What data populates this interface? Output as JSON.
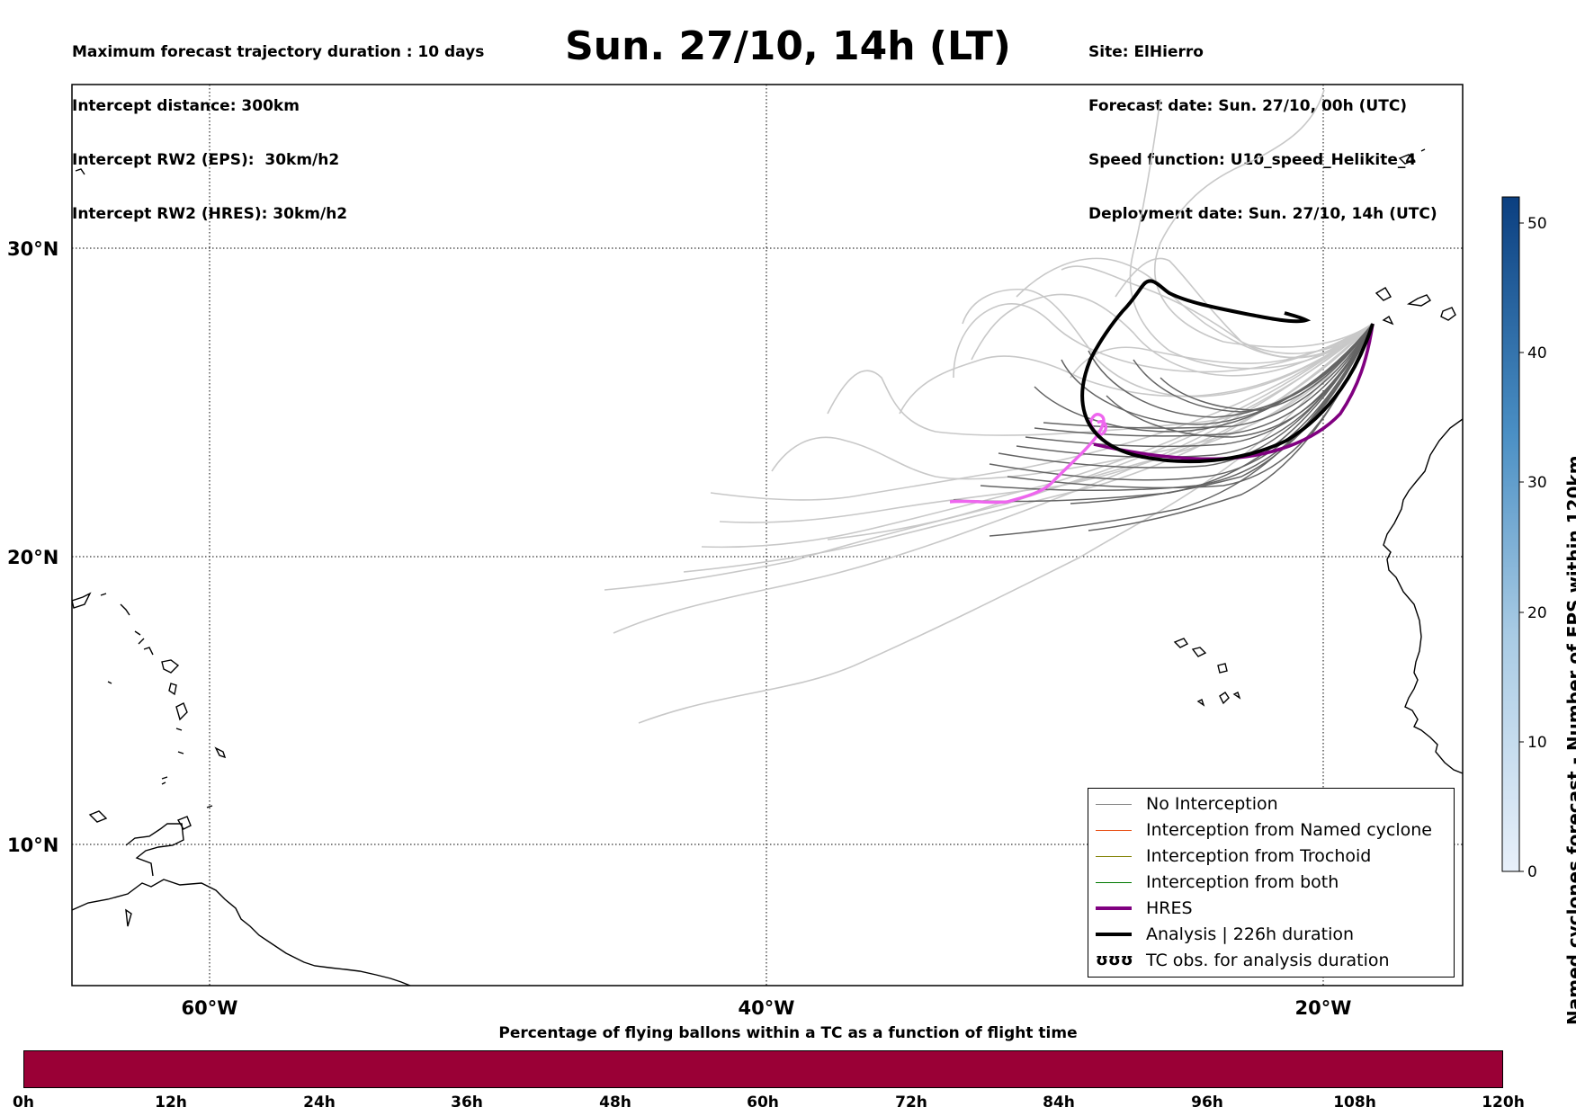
{
  "header": {
    "left_lines": [
      "Maximum forecast trajectory duration : 10 days",
      "Intercept distance: 300km",
      "Intercept RW2 (EPS):  30km/h2",
      "Intercept RW2 (HRES): 30km/h2"
    ],
    "title": "Sun. 27/10, 14h (LT)",
    "right_lines": [
      "Site: ElHierro",
      "Forecast date: Sun. 27/10, 00h (UTC)",
      "Speed function: U10_speed_Helikite_4",
      "Deployment date: Sun. 27/10, 14h (UTC)"
    ]
  },
  "map": {
    "lat_labels": [
      "30°N",
      "20°N",
      "10°N"
    ],
    "lon_labels": [
      "60°W",
      "40°W",
      "20°W"
    ],
    "colors": {
      "eps_light": "#c8c8c8",
      "eps_dark": "#646464",
      "hres": "#800080",
      "hres_early": "#ee66ee",
      "analysis": "#000000"
    }
  },
  "legend": {
    "items": [
      {
        "label": "No Interception",
        "color": "#808080"
      },
      {
        "label": "Interception from Named cyclone",
        "color": "#e8531a"
      },
      {
        "label": "Interception from Trochoid",
        "color": "#808000"
      },
      {
        "label": "Interception from both",
        "color": "#007800"
      },
      {
        "label": "HRES",
        "color": "#800080"
      },
      {
        "label": "Analysis | 226h duration",
        "color": "#000000"
      },
      {
        "label": "TC obs. for analysis duration",
        "icon": "cyclone-symbols-icon",
        "glyph": "ʊʊʊ"
      }
    ]
  },
  "colorbar": {
    "title": "Named cyclones forecast - Number of EPS within 120km",
    "ticks": [
      "0",
      "10",
      "20",
      "30",
      "40",
      "50"
    ],
    "min": 0,
    "max": 52
  },
  "percentage_bar": {
    "title": "Percentage of flying ballons within a TC as a function of flight time",
    "color": "#9a0036",
    "ticks": [
      "0h",
      "12h",
      "24h",
      "36h",
      "48h",
      "60h",
      "72h",
      "84h",
      "96h",
      "108h",
      "120h"
    ]
  }
}
